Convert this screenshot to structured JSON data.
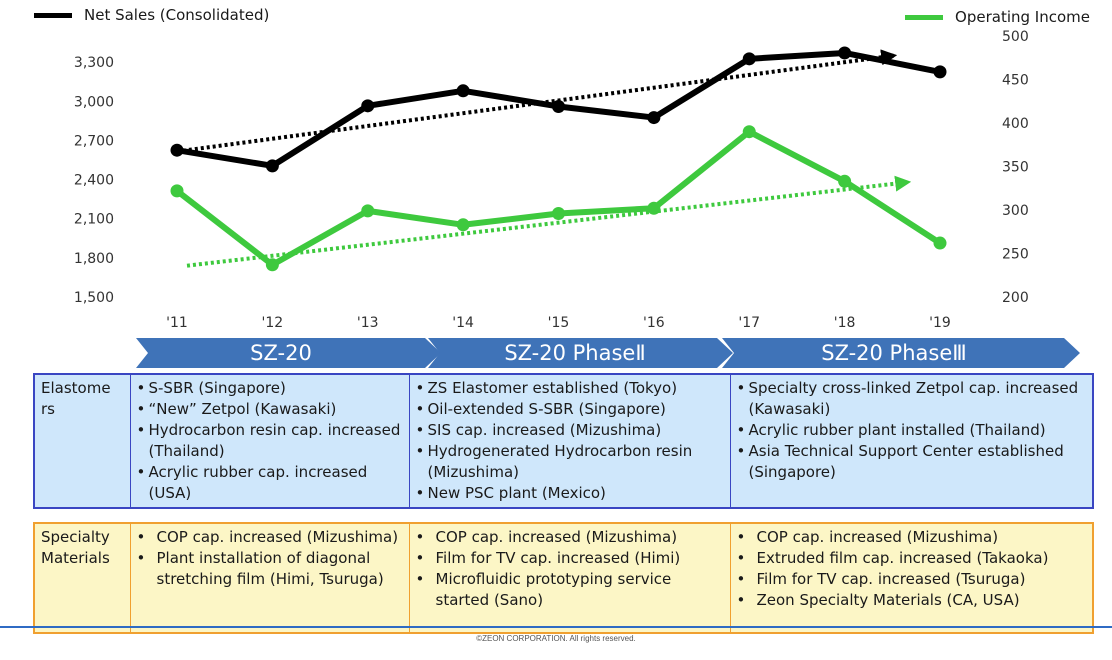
{
  "chart_data": {
    "type": "line",
    "categories": [
      "'11",
      "'12",
      "'13",
      "'14",
      "'15",
      "'16",
      "'17",
      "'18",
      "'19"
    ],
    "y_left": {
      "ticks": [
        "1,500",
        "1,800",
        "2,100",
        "2,400",
        "2,700",
        "3,000",
        "3,300"
      ],
      "range": [
        1500,
        3500
      ]
    },
    "y_right": {
      "ticks": [
        "200",
        "250",
        "300",
        "350",
        "400",
        "450",
        "500"
      ],
      "range": [
        200,
        500
      ]
    },
    "series": [
      {
        "name": "Net Sales (Consolidated)",
        "axis": "left",
        "color": "#000000",
        "values": [
          2625,
          2505,
          2965,
          3080,
          2960,
          2875,
          3325,
          3370,
          3225
        ],
        "trend": [
          2615,
          3350
        ]
      },
      {
        "name": "Operating Income",
        "axis": "right",
        "color": "#3ec93e",
        "values": [
          322,
          237,
          299,
          283,
          296,
          302,
          390,
          333,
          262
        ],
        "trend": [
          236,
          332
        ]
      }
    ],
    "grid": false
  },
  "phases": [
    "SZ-20",
    "SZ-20 PhaseⅡ",
    "SZ-20 PhaseⅢ"
  ],
  "rows": [
    {
      "label": "Elastome rs",
      "cols": [
        [
          "S-SBR (Singapore)",
          "“New” Zetpol (Kawasaki)",
          "Hydrocarbon resin cap. increased (Thailand)",
          "Acrylic rubber cap. increased (USA)"
        ],
        [
          "ZS Elastomer established (Tokyo)",
          "Oil-extended S-SBR (Singapore)",
          "SIS cap. increased (Mizushima)",
          "Hydrogenerated Hydrocarbon resin (Mizushima)",
          "New PSC plant (Mexico)"
        ],
        [
          "Specialty cross-linked Zetpol cap. increased (Kawasaki)",
          "Acrylic rubber plant installed (Thailand)",
          "Asia Technical Support Center established (Singapore)"
        ]
      ]
    },
    {
      "label": "Specialty Materials",
      "cols": [
        [
          "COP cap. increased (Mizushima)",
          "Plant installation of diagonal stretching film (Himi, Tsuruga)"
        ],
        [
          "COP cap. increased (Mizushima)",
          "Film for TV cap. increased (Himi)",
          "Microfluidic prototyping service started (Sano)"
        ],
        [
          "COP cap. increased (Mizushima)",
          "Extruded film cap. increased (Takaoka)",
          "Film for TV cap. increased (Tsuruga)",
          "Zeon Specialty Materials (CA, USA)"
        ]
      ]
    }
  ],
  "footer": "©ZEON CORPORATION. All rights reserved."
}
